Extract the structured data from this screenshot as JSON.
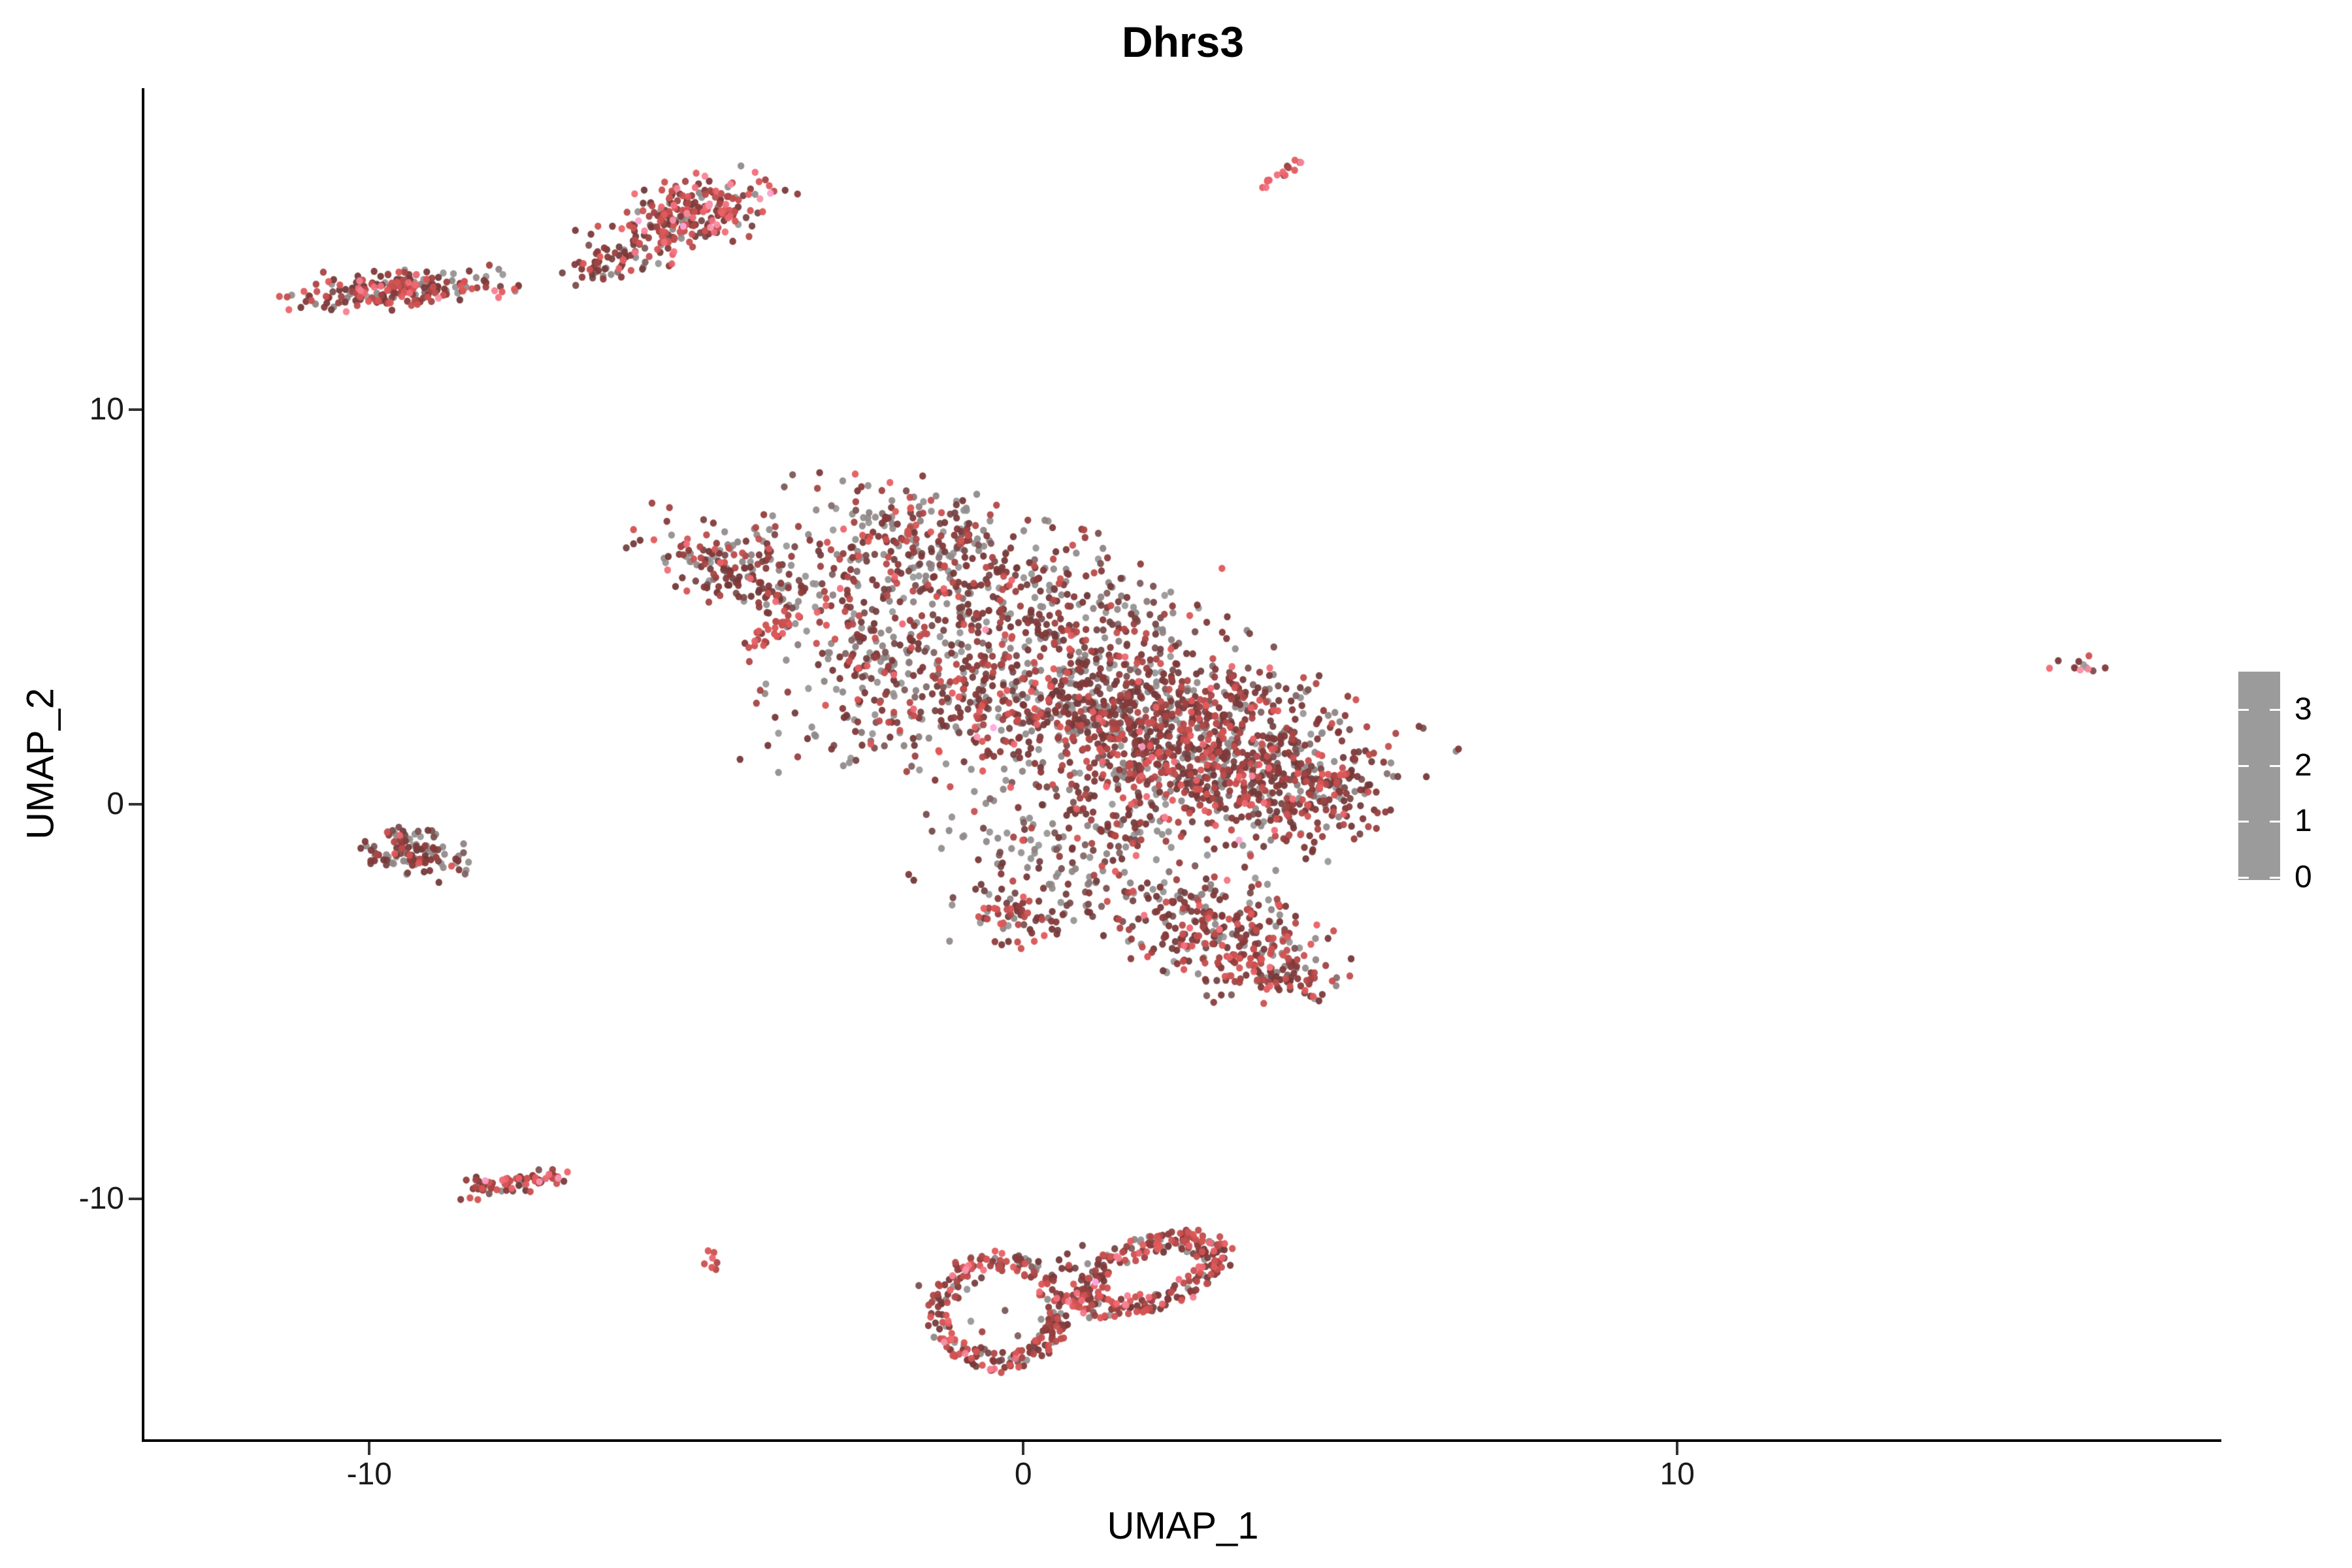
{
  "page": {
    "background": "#FFFFFF"
  },
  "chart_data": {
    "type": "scatter",
    "variant": "umap_feature_plot",
    "title": "Dhrs3",
    "xlabel": "UMAP_1",
    "ylabel": "UMAP_2",
    "xlim": [
      -13.44,
      18.32
    ],
    "ylim": [
      -16.09,
      18.15
    ],
    "grid": false,
    "x_ticks": [
      -10,
      0,
      10
    ],
    "x_tick_labels": [
      "-10",
      "0",
      "10"
    ],
    "y_ticks": [
      10,
      0,
      -10
    ],
    "y_tick_labels": [
      "10",
      "0",
      "-10"
    ],
    "point_radius_px": 5.2,
    "axis_color": "#000000",
    "tick_text_color": "#1a1a1a",
    "seed": 42,
    "colorbar": {
      "position": "right",
      "vmin": 0,
      "vmax": 3.68,
      "ticks": [
        3,
        2,
        1,
        0
      ],
      "tick_labels": [
        "3",
        "2",
        "1",
        "0"
      ],
      "stops": [
        [
          0.0,
          "#9B9B9B"
        ],
        [
          0.35,
          "#8D8080"
        ],
        [
          0.8,
          "#7C5454"
        ],
        [
          1.3,
          "#713838"
        ],
        [
          1.7,
          "#8A3A3A"
        ],
        [
          2.0,
          "#BE4C4C"
        ],
        [
          2.4,
          "#E25757"
        ],
        [
          2.8,
          "#F5707F"
        ],
        [
          3.1,
          "#FB8FA6"
        ],
        [
          3.68,
          "#FFB3F8"
        ]
      ]
    },
    "clusters": [
      {
        "name": "islet-top-left",
        "shape": "gauss",
        "cx": -9.55,
        "cy": 13.05,
        "sx": 0.78,
        "sy": 0.22,
        "rot": 4,
        "n": 215,
        "p0": 0.22,
        "mu": 1.85,
        "sig": 0.55,
        "phi": 0.005
      },
      {
        "name": "islet-top",
        "shape": "gauss",
        "cx": -5.1,
        "cy": 14.9,
        "sx": 0.72,
        "sy": 0.4,
        "rot": 33,
        "n": 245,
        "p0": 0.18,
        "mu": 1.85,
        "sig": 0.55,
        "phi": 0.012
      },
      {
        "name": "islet-top-tail",
        "shape": "gauss",
        "cx": -6.25,
        "cy": 13.75,
        "sx": 0.35,
        "sy": 0.2,
        "rot": 33,
        "n": 55,
        "p0": 0.25,
        "mu": 1.7,
        "sig": 0.5,
        "phi": 0
      },
      {
        "name": "streak-top-center",
        "shape": "streak",
        "x1": 3.66,
        "y1": 15.62,
        "x2": 4.24,
        "y2": 16.42,
        "thick": 0.085,
        "n": 15,
        "p0": 0.06,
        "mu": 2.25,
        "sig": 0.35,
        "phi": 0
      },
      {
        "name": "main-wedge",
        "shape": "gauss",
        "cx": -4.35,
        "cy": 5.9,
        "sx": 0.9,
        "sy": 0.38,
        "rot": -38,
        "n": 185,
        "p0": 0.26,
        "mu": 1.6,
        "sig": 0.5,
        "phi": 0.003
      },
      {
        "name": "main-streak",
        "shape": "streak",
        "x1": -4.25,
        "y1": 3.82,
        "x2": -3.55,
        "y2": 4.72,
        "thick": 0.1,
        "n": 32,
        "p0": 0.08,
        "mu": 2.0,
        "sig": 0.4,
        "phi": 0
      },
      {
        "name": "main-upper-band",
        "shape": "gauss",
        "cx": -0.85,
        "cy": 5.65,
        "sx": 1.5,
        "sy": 0.8,
        "rot": -22,
        "n": 430,
        "p0": 0.26,
        "mu": 1.5,
        "sig": 0.48,
        "phi": 0.004
      },
      {
        "name": "main-top-scatter",
        "shape": "gauss",
        "cx": -1.7,
        "cy": 7.15,
        "sx": 0.85,
        "sy": 0.5,
        "rot": -15,
        "n": 85,
        "p0": 0.3,
        "mu": 1.45,
        "sig": 0.5,
        "phi": 0
      },
      {
        "name": "main-mid-core",
        "shape": "gauss",
        "cx": 0.85,
        "cy": 2.65,
        "sx": 1.55,
        "sy": 1.15,
        "rot": -18,
        "n": 860,
        "p0": 0.24,
        "mu": 1.5,
        "sig": 0.5,
        "phi": 0.004
      },
      {
        "name": "main-right-core",
        "shape": "gauss",
        "cx": 3.0,
        "cy": 1.1,
        "sx": 1.2,
        "sy": 1.05,
        "rot": -35,
        "n": 760,
        "p0": 0.22,
        "mu": 1.55,
        "sig": 0.5,
        "phi": 0.004
      },
      {
        "name": "main-right-tip",
        "shape": "gauss",
        "cx": 4.55,
        "cy": 0.35,
        "sx": 0.5,
        "sy": 0.75,
        "rot": -25,
        "n": 135,
        "p0": 0.22,
        "mu": 1.6,
        "sig": 0.5,
        "phi": 0
      },
      {
        "name": "main-bottom-lobe",
        "shape": "gauss",
        "cx": 3.0,
        "cy": -3.25,
        "sx": 0.95,
        "sy": 0.6,
        "rot": -40,
        "n": 310,
        "p0": 0.2,
        "mu": 1.65,
        "sig": 0.5,
        "phi": 0.003
      },
      {
        "name": "main-bottom-tip",
        "shape": "gauss",
        "cx": 3.85,
        "cy": -4.3,
        "sx": 0.4,
        "sy": 0.32,
        "rot": -35,
        "n": 55,
        "p0": 0.15,
        "mu": 1.7,
        "sig": 0.45,
        "phi": 0
      },
      {
        "name": "main-bridge",
        "shape": "gauss",
        "cx": 0.55,
        "cy": -1.35,
        "sx": 1.0,
        "sy": 0.9,
        "rot": 0,
        "n": 165,
        "p0": 0.34,
        "mu": 1.35,
        "sig": 0.5,
        "phi": 0
      },
      {
        "name": "main-left-edge",
        "shape": "gauss",
        "cx": -2.4,
        "cy": 3.3,
        "sx": 0.65,
        "sy": 1.25,
        "rot": -10,
        "n": 150,
        "p0": 0.34,
        "mu": 1.3,
        "sig": 0.5,
        "phi": 0
      },
      {
        "name": "main-clump",
        "shape": "gauss",
        "cx": -0.1,
        "cy": -2.9,
        "sx": 0.3,
        "sy": 0.32,
        "rot": 0,
        "n": 50,
        "p0": 0.15,
        "mu": 1.7,
        "sig": 0.45,
        "phi": 0
      },
      {
        "name": "islet-left",
        "shape": "gauss",
        "cx": -9.4,
        "cy": -1.25,
        "sx": 0.4,
        "sy": 0.27,
        "rot": -10,
        "n": 120,
        "p0": 0.4,
        "mu": 1.4,
        "sig": 0.5,
        "phi": 0
      },
      {
        "name": "islet-bottom-left",
        "shape": "streak",
        "x1": -8.5,
        "y1": -9.72,
        "x2": -7.05,
        "y2": -9.45,
        "thick": 0.13,
        "n": 78,
        "p0": 0.15,
        "mu": 1.9,
        "sig": 0.5,
        "phi": 0.03
      },
      {
        "name": "islet-tiny",
        "shape": "gauss",
        "cx": -4.75,
        "cy": -11.62,
        "sx": 0.13,
        "sy": 0.14,
        "rot": 0,
        "n": 7,
        "p0": 0.05,
        "mu": 2.45,
        "sig": 0.4,
        "phi": 0.15
      },
      {
        "name": "bottom-ring-left",
        "shape": "ring",
        "cx": -0.38,
        "cy": -12.85,
        "rx": 1.05,
        "ry": 1.5,
        "rot": 0,
        "band": 0.3,
        "n": 235,
        "p0": 0.14,
        "mu": 1.8,
        "sig": 0.5,
        "phi": 0.006
      },
      {
        "name": "bottom-ring-left-inner",
        "shape": "gauss",
        "cx": -0.5,
        "cy": -12.8,
        "sx": 0.5,
        "sy": 0.6,
        "rot": 0,
        "n": 10,
        "p0": 0.45,
        "mu": 1.3,
        "sig": 0.4,
        "phi": 0
      },
      {
        "name": "bottom-ring-right",
        "shape": "ring",
        "cx": 1.95,
        "cy": -11.9,
        "rx": 1.4,
        "ry": 0.85,
        "rot": 40,
        "band": 0.45,
        "n": 275,
        "p0": 0.13,
        "mu": 1.8,
        "sig": 0.5,
        "phi": 0.008
      },
      {
        "name": "bottom-bridge",
        "shape": "gauss",
        "cx": 0.72,
        "cy": -12.25,
        "sx": 0.28,
        "sy": 0.5,
        "rot": 0,
        "n": 26,
        "p0": 0.15,
        "mu": 1.7,
        "sig": 0.5,
        "phi": 0
      },
      {
        "name": "islet-far-right",
        "shape": "gauss",
        "cx": 16.2,
        "cy": 3.5,
        "sx": 0.24,
        "sy": 0.12,
        "rot": -18,
        "n": 12,
        "p0": 0.25,
        "mu": 1.75,
        "sig": 0.6,
        "phi": 0.04
      }
    ]
  }
}
